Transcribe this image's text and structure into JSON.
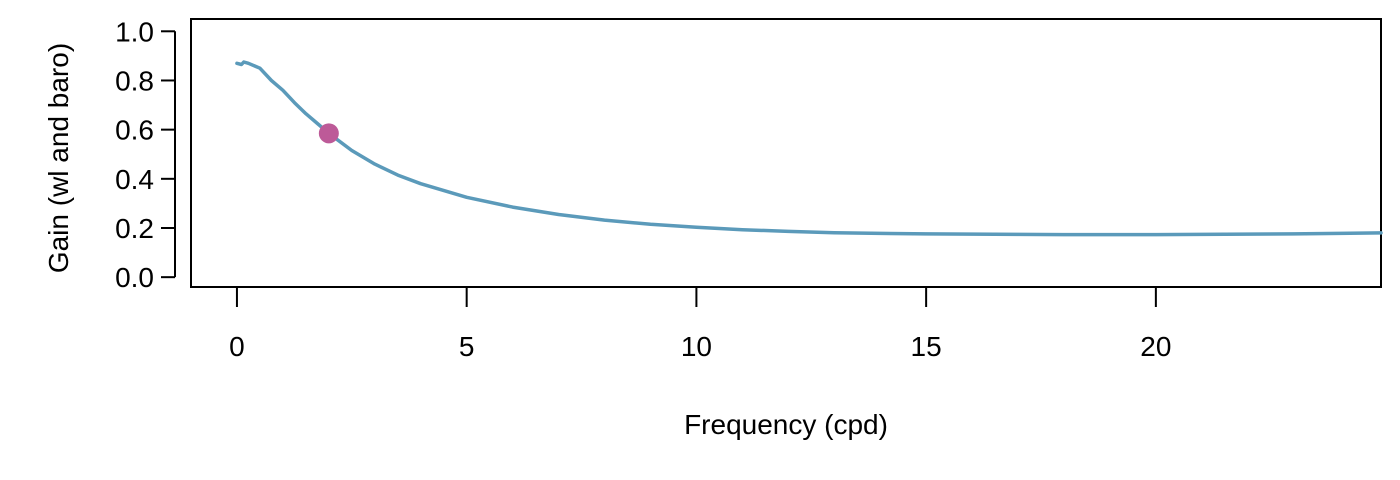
{
  "chart_data": {
    "type": "line",
    "title": "",
    "xlabel": "Frequency (cpd)",
    "ylabel": "Gain (wl and baro)",
    "xlim": [
      -1,
      24.9
    ],
    "ylim": [
      -0.04,
      1.05
    ],
    "x_ticks": [
      0,
      5,
      10,
      15,
      20
    ],
    "y_ticks": [
      0.0,
      0.2,
      0.4,
      0.6,
      0.8,
      1.0
    ],
    "x_tick_labels": [
      "0",
      "5",
      "10",
      "15",
      "20"
    ],
    "y_tick_labels": [
      "0.0",
      "0.2",
      "0.4",
      "0.6",
      "0.8",
      "1.0"
    ],
    "grid": false,
    "series": [
      {
        "color": "#5b9aba",
        "x": [
          0,
          0.1,
          0.15,
          0.25,
          0.5,
          0.75,
          1,
          1.25,
          1.5,
          1.75,
          2,
          2.5,
          3,
          3.5,
          4,
          5,
          6,
          7,
          8,
          9,
          10,
          11,
          12,
          13,
          14,
          15,
          16,
          17,
          18,
          19,
          20,
          21,
          22,
          23,
          24,
          24.9
        ],
        "y": [
          0.87,
          0.865,
          0.875,
          0.87,
          0.85,
          0.8,
          0.76,
          0.71,
          0.665,
          0.625,
          0.585,
          0.515,
          0.46,
          0.415,
          0.38,
          0.325,
          0.285,
          0.255,
          0.232,
          0.215,
          0.203,
          0.193,
          0.186,
          0.181,
          0.178,
          0.176,
          0.175,
          0.174,
          0.173,
          0.173,
          0.173,
          0.174,
          0.175,
          0.176,
          0.178,
          0.18
        ]
      }
    ],
    "highlight_point": {
      "x": 2,
      "y": 0.585,
      "color": "#bd5a98"
    }
  }
}
